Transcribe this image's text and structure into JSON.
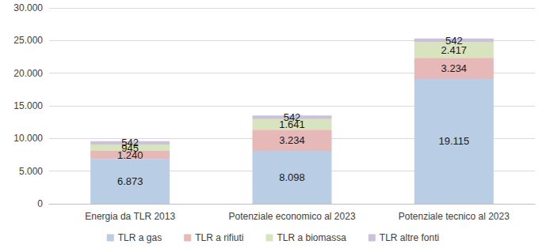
{
  "chart_data": {
    "type": "bar",
    "stacked": true,
    "data_labels": true,
    "grid": true,
    "legend": "bottom",
    "categories": [
      "Energia da TLR 2013",
      "Potenziale economico al 2023",
      "Potenziale tecnico al 2023"
    ],
    "ylim": [
      0,
      30000
    ],
    "yticks": [
      0,
      {
        "value": 5000,
        "label": "5.000"
      },
      {
        "value": 10000,
        "label": "10.000"
      },
      {
        "value": 15000,
        "label": "15.000"
      },
      {
        "value": 20000,
        "label": "20.000"
      },
      {
        "value": 25000,
        "label": "25.000"
      },
      {
        "value": 30000,
        "label": "30.000"
      }
    ],
    "series": [
      {
        "name": "TLR a gas",
        "color": "#b9cde5",
        "values": [
          6873,
          8098,
          19115
        ],
        "value_labels": [
          "6.873",
          "8.098",
          "19.115"
        ]
      },
      {
        "name": "TLR a rifiuti",
        "color": "#e6b9b8",
        "values": [
          1240,
          3234,
          3234
        ],
        "value_labels": [
          "1.240",
          "3.234",
          "3.234"
        ]
      },
      {
        "name": "TLR a biomassa",
        "color": "#d7e4bd",
        "values": [
          945,
          1641,
          2417
        ],
        "value_labels": [
          "945",
          "1.641",
          "2.417"
        ]
      },
      {
        "name": "TLR altre fonti",
        "color": "#ccc1da",
        "values": [
          542,
          542,
          542
        ],
        "value_labels": [
          "542",
          "542",
          "542"
        ]
      }
    ]
  }
}
